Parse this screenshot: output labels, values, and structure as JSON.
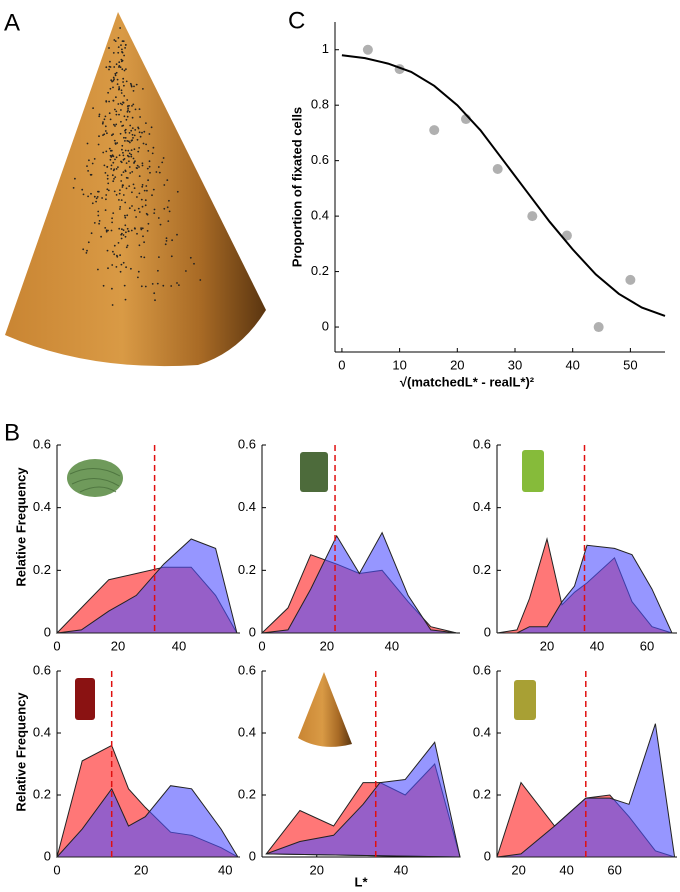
{
  "panel_labels": [
    "A",
    "B",
    "C"
  ],
  "chart_data": [
    {
      "type": "scatter",
      "ylabel": "Proportion of fixated cells",
      "xlabel": "√(matchedL* - realL*)²",
      "x": [
        4.5,
        10,
        16,
        21.5,
        27,
        33,
        39,
        44.5,
        50
      ],
      "values": [
        1.0,
        0.93,
        0.71,
        0.75,
        0.57,
        0.4,
        0.33,
        0.0,
        0.17
      ],
      "color": "#b0b0b0",
      "fit_x": [
        0,
        4,
        8,
        12,
        16,
        20,
        24,
        28,
        32,
        36,
        40,
        44,
        48,
        52,
        56
      ],
      "fit_values": [
        0.98,
        0.97,
        0.95,
        0.92,
        0.87,
        0.8,
        0.71,
        0.6,
        0.49,
        0.38,
        0.28,
        0.19,
        0.12,
        0.07,
        0.04
      ],
      "fit_color": "#000000",
      "xlim": [
        -1.2,
        56
      ],
      "ylim": [
        -0.09,
        1.1
      ],
      "xticks": [
        0,
        10,
        20,
        30,
        40,
        50
      ],
      "yticks": [
        0,
        0.2,
        0.4,
        0.6,
        0.8,
        1
      ]
    },
    {
      "type": "area",
      "ylabel": "Relative Frequency",
      "x": [
        0,
        8,
        17,
        26,
        35,
        44,
        52,
        59
      ],
      "series": [
        {
          "color": "#ff7777",
          "values": [
            0,
            0.08,
            0.17,
            0.19,
            0.21,
            0.21,
            0.12,
            0
          ]
        },
        {
          "color": "#5050ff",
          "values": [
            0,
            0.01,
            0.07,
            0.12,
            0.22,
            0.3,
            0.27,
            0
          ]
        }
      ],
      "threshold": 32,
      "xlim": [
        0,
        60
      ],
      "ylim": [
        0,
        0.6
      ],
      "xticks": [
        0,
        20,
        40
      ],
      "yticks": [
        0,
        0.2,
        0.4,
        0.6
      ]
    },
    {
      "type": "area",
      "x": [
        0,
        8,
        15,
        23,
        30,
        37,
        45,
        52,
        60
      ],
      "series": [
        {
          "color": "#ff7777",
          "values": [
            0,
            0.08,
            0.25,
            0.22,
            0.19,
            0.2,
            0.1,
            0.02,
            0
          ]
        },
        {
          "color": "#5050ff",
          "values": [
            0,
            0.01,
            0.14,
            0.31,
            0.19,
            0.32,
            0.12,
            0.01,
            0
          ]
        }
      ],
      "threshold": 22.5,
      "xlim": [
        0,
        61
      ],
      "ylim": [
        0,
        0.6
      ],
      "xticks": [
        0,
        20,
        40
      ],
      "yticks": [
        0,
        0.2,
        0.4,
        0.6
      ]
    },
    {
      "type": "area",
      "x": [
        0,
        8,
        13,
        20,
        26,
        31,
        36,
        47,
        54,
        62,
        70
      ],
      "series": [
        {
          "color": "#ff7777",
          "values": [
            0,
            0.01,
            0.11,
            0.3,
            0.09,
            0.13,
            0.16,
            0.24,
            0.1,
            0.02,
            0
          ]
        },
        {
          "color": "#5050ff",
          "values": [
            0,
            0,
            0.02,
            0.02,
            0.1,
            0.15,
            0.28,
            0.27,
            0.25,
            0.14,
            0
          ]
        }
      ],
      "threshold": 35,
      "xlim": [
        0,
        72
      ],
      "ylim": [
        0,
        0.6
      ],
      "xticks": [
        20,
        40,
        60
      ],
      "yticks": [
        0,
        0.2,
        0.4,
        0.6
      ]
    },
    {
      "type": "area",
      "ylabel": "Relative Frequency",
      "x": [
        0,
        6,
        13,
        17,
        21,
        27,
        32,
        39,
        43
      ],
      "series": [
        {
          "color": "#ff7777",
          "values": [
            0,
            0.31,
            0.36,
            0.22,
            0.16,
            0.08,
            0.07,
            0.03,
            0
          ]
        },
        {
          "color": "#5050ff",
          "values": [
            0,
            0.09,
            0.22,
            0.1,
            0.13,
            0.23,
            0.22,
            0.09,
            0
          ]
        }
      ],
      "threshold": 13,
      "xlim": [
        0,
        43.5
      ],
      "ylim": [
        0,
        0.6
      ],
      "xticks": [
        0,
        20,
        40
      ],
      "yticks": [
        0,
        0.2,
        0.4,
        0.6
      ]
    },
    {
      "type": "area",
      "xlabel": "L*",
      "x": [
        8,
        16,
        24,
        31,
        35,
        41,
        48,
        54
      ],
      "series": [
        {
          "color": "#ff7777",
          "values": [
            0.01,
            0.15,
            0.1,
            0.24,
            0.24,
            0.2,
            0.3,
            0
          ]
        },
        {
          "color": "#5050ff",
          "values": [
            0.01,
            0.05,
            0.07,
            0.17,
            0.24,
            0.25,
            0.37,
            0
          ]
        }
      ],
      "threshold": 34,
      "xlim": [
        7,
        54
      ],
      "ylim": [
        0,
        0.6
      ],
      "xticks": [
        20,
        40
      ],
      "yticks": [
        0,
        0.2,
        0.4,
        0.6
      ]
    },
    {
      "type": "area",
      "x": [
        11,
        21,
        35,
        48,
        58,
        66,
        77,
        85
      ],
      "series": [
        {
          "color": "#ff7777",
          "values": [
            0,
            0.24,
            0.1,
            0.19,
            0.2,
            0.13,
            0.02,
            0
          ]
        },
        {
          "color": "#5050ff",
          "values": [
            0,
            0.01,
            0.1,
            0.19,
            0.19,
            0.17,
            0.43,
            0
          ]
        }
      ],
      "threshold": 48,
      "xlim": [
        11,
        86
      ],
      "ylim": [
        0,
        0.6
      ],
      "xticks": [
        20,
        40,
        60
      ],
      "yticks": [
        0,
        0.2,
        0.4,
        0.6
      ]
    }
  ]
}
